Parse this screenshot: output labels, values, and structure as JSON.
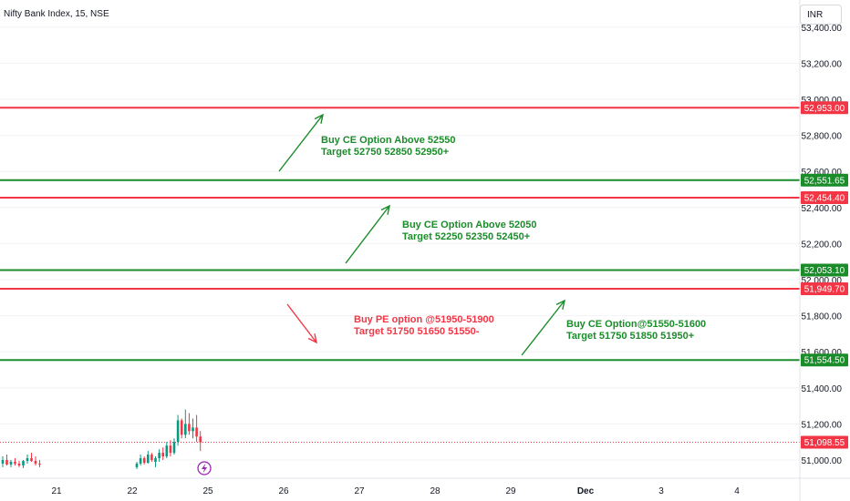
{
  "header": {
    "symbol_title": "Nifty Bank Index, 15, NSE",
    "currency": "INR"
  },
  "chart_data": {
    "type": "candlestick",
    "title": "Nifty Bank Index, 15, NSE",
    "x_ticks": [
      "21",
      "22",
      "25",
      "26",
      "27",
      "28",
      "29",
      "Dec",
      "3",
      "4"
    ],
    "y_ticks": [
      51000,
      51200,
      51400,
      51600,
      51800,
      52000,
      52200,
      52400,
      52600,
      52800,
      53000,
      53200,
      53400
    ],
    "ylim": [
      50950,
      53430
    ],
    "last_price": 51098.55,
    "price_tags": [
      {
        "value": 52953.0,
        "label": "52,953.00",
        "color": "#f23645"
      },
      {
        "value": 52551.65,
        "label": "52,551.65",
        "color": "#1b8c2a"
      },
      {
        "value": 52454.4,
        "label": "52,454.40",
        "color": "#f23645"
      },
      {
        "value": 52053.1,
        "label": "52,053.10",
        "color": "#1b8c2a"
      },
      {
        "value": 51949.7,
        "label": "51,949.70",
        "color": "#f23645"
      },
      {
        "value": 51554.5,
        "label": "51,554.50",
        "color": "#1b8c2a"
      },
      {
        "value": 51098.55,
        "label": "51,098.55",
        "color": "#f23645"
      }
    ],
    "horizontal_lines": [
      {
        "value": 52953.0,
        "color": "#f23645"
      },
      {
        "value": 52551.65,
        "color": "#1b8c2a"
      },
      {
        "value": 52454.4,
        "color": "#f23645"
      },
      {
        "value": 52053.1,
        "color": "#1b8c2a"
      },
      {
        "value": 51949.7,
        "color": "#f23645"
      },
      {
        "value": 51554.5,
        "color": "#1b8c2a"
      }
    ],
    "annotations": [
      {
        "line1": "Buy CE Option Above 52550",
        "line2": "Target 52750 52850 52950+",
        "color": "#1b8c2a",
        "arrow": "up"
      },
      {
        "line1": "Buy CE Option Above 52050",
        "line2": "Target 52250 52350 52450+",
        "color": "#1b8c2a",
        "arrow": "up"
      },
      {
        "line1": "Buy PE option @51950-51900",
        "line2": "Target 51750 51650 51550-",
        "color": "#f23645",
        "arrow": "down"
      },
      {
        "line1": "Buy CE Option@51550-51600",
        "line2": "Target 51750 51850 51950+",
        "color": "#1b8c2a",
        "arrow": "up"
      }
    ],
    "candles": [
      {
        "o": 50980,
        "h": 51020,
        "l": 50960,
        "c": 51000
      },
      {
        "o": 51000,
        "h": 51030,
        "l": 50970,
        "c": 50975
      },
      {
        "o": 50975,
        "h": 51000,
        "l": 50960,
        "c": 50990
      },
      {
        "o": 50990,
        "h": 51010,
        "l": 50970,
        "c": 50980
      },
      {
        "o": 50980,
        "h": 50995,
        "l": 50960,
        "c": 50970
      },
      {
        "o": 50970,
        "h": 51000,
        "l": 50955,
        "c": 50995
      },
      {
        "o": 50995,
        "h": 51030,
        "l": 50980,
        "c": 51010
      },
      {
        "o": 51010,
        "h": 51040,
        "l": 50990,
        "c": 50995
      },
      {
        "o": 50995,
        "h": 51020,
        "l": 50970,
        "c": 50980
      },
      {
        "o": 50980,
        "h": 51000,
        "l": 50960,
        "c": 50975
      },
      {
        "o": 50960,
        "h": 50990,
        "l": 50950,
        "c": 50980
      },
      {
        "o": 50980,
        "h": 51030,
        "l": 50970,
        "c": 51010
      },
      {
        "o": 51010,
        "h": 51020,
        "l": 50975,
        "c": 50985
      },
      {
        "o": 50985,
        "h": 51050,
        "l": 50980,
        "c": 51030
      },
      {
        "o": 51030,
        "h": 51040,
        "l": 50990,
        "c": 51000
      },
      {
        "o": 50990,
        "h": 51020,
        "l": 50960,
        "c": 51010
      },
      {
        "o": 51010,
        "h": 51060,
        "l": 50990,
        "c": 51040
      },
      {
        "o": 51040,
        "h": 51070,
        "l": 51000,
        "c": 51020
      },
      {
        "o": 51020,
        "h": 51100,
        "l": 51010,
        "c": 51080
      },
      {
        "o": 51080,
        "h": 51110,
        "l": 51020,
        "c": 51040
      },
      {
        "o": 51040,
        "h": 51120,
        "l": 51030,
        "c": 51100
      },
      {
        "o": 51100,
        "h": 51250,
        "l": 51080,
        "c": 51220
      },
      {
        "o": 51220,
        "h": 51230,
        "l": 51120,
        "c": 51140
      },
      {
        "o": 51140,
        "h": 51280,
        "l": 51120,
        "c": 51200
      },
      {
        "o": 51200,
        "h": 51260,
        "l": 51140,
        "c": 51160
      },
      {
        "o": 51160,
        "h": 51230,
        "l": 51120,
        "c": 51180
      },
      {
        "o": 51180,
        "h": 51250,
        "l": 51100,
        "c": 51130
      },
      {
        "o": 51130,
        "h": 51160,
        "l": 51050,
        "c": 51098
      }
    ]
  }
}
